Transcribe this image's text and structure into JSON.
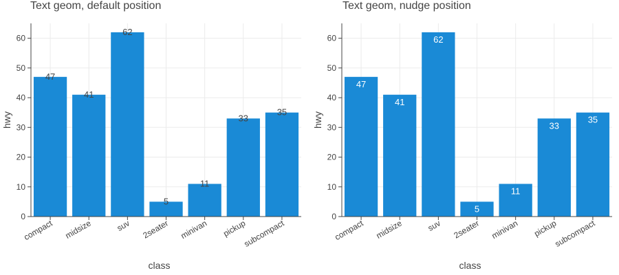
{
  "chart_data": [
    {
      "type": "bar",
      "title": "Text geom, default position",
      "xlabel": "class",
      "ylabel": "hwy",
      "categories": [
        "compact",
        "midsize",
        "suv",
        "2seater",
        "minivan",
        "pickup",
        "subcompact"
      ],
      "values": [
        47,
        41,
        62,
        5,
        11,
        33,
        35
      ],
      "data_labels": [
        "47",
        "41",
        "62",
        "5",
        "11",
        "33",
        "35"
      ],
      "label_position": "default",
      "ylim": [
        0,
        65
      ],
      "yticks": [
        "0",
        "10",
        "20",
        "30",
        "40",
        "50",
        "60"
      ],
      "grid": true,
      "bar_color": "#1a8ad6",
      "label_color": "#444444"
    },
    {
      "type": "bar",
      "title": "Text geom, nudge position",
      "xlabel": "class",
      "ylabel": "hwy",
      "categories": [
        "compact",
        "midsize",
        "suv",
        "2seater",
        "minivan",
        "pickup",
        "subcompact"
      ],
      "values": [
        47,
        41,
        62,
        5,
        11,
        33,
        35
      ],
      "data_labels": [
        "47",
        "41",
        "62",
        "5",
        "11",
        "33",
        "35"
      ],
      "label_position": "nudge",
      "ylim": [
        0,
        65
      ],
      "yticks": [
        "0",
        "10",
        "20",
        "30",
        "40",
        "50",
        "60"
      ],
      "grid": true,
      "bar_color": "#1a8ad6",
      "label_color": "#ffffff"
    }
  ]
}
